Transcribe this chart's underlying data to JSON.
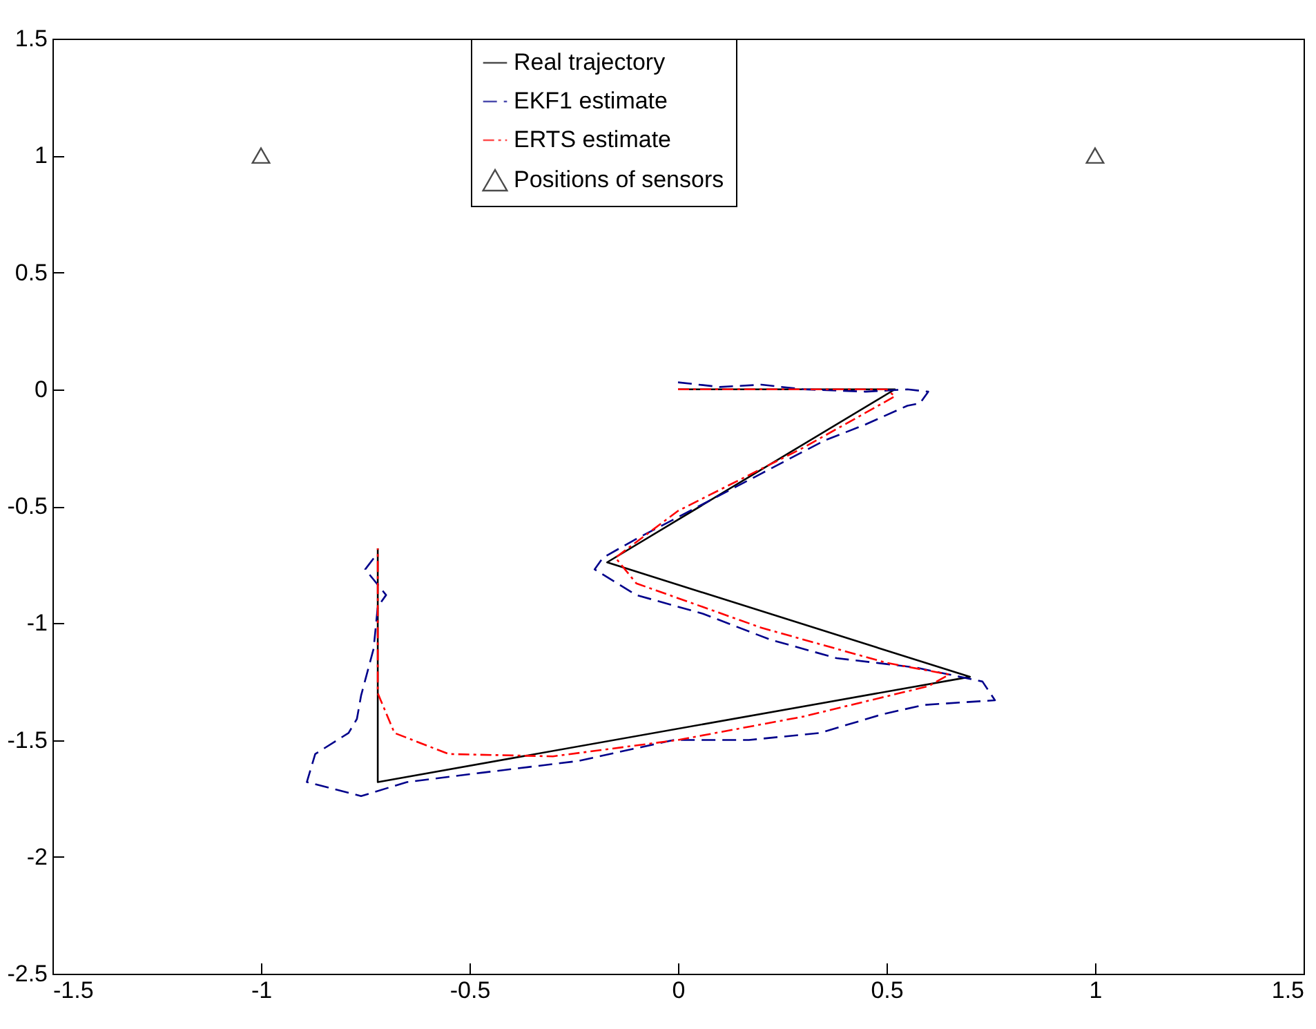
{
  "chart_data": {
    "type": "line",
    "xlim": [
      -1.5,
      1.5
    ],
    "xticks": [
      -1.5,
      -1,
      -0.5,
      0,
      0.5,
      1,
      1.5
    ],
    "ylim": [
      -2.5,
      1.5
    ],
    "yticks": [
      -2.5,
      -2,
      -1.5,
      -1,
      -0.5,
      0,
      0.5,
      1,
      1.5
    ],
    "grid": false,
    "legend": "top",
    "series": [
      {
        "name": "Real trajectory",
        "type": "line",
        "color": "#000000",
        "line_style": "solid",
        "x": [
          0,
          0.52,
          -0.17,
          0.7,
          -0.72,
          -0.72
        ],
        "values": [
          0,
          0,
          -0.74,
          -1.23,
          -1.68,
          -0.68
        ]
      },
      {
        "name": "EKF1 estimate",
        "type": "line",
        "color": "#00008b",
        "line_style": "dashed",
        "x": [
          0,
          0.1,
          0.2,
          0.3,
          0.45,
          0.55,
          0.6,
          0.58,
          0.55,
          0.45,
          0.35,
          0.2,
          0.05,
          -0.1,
          -0.18,
          -0.2,
          -0.1,
          0.06,
          0.22,
          0.38,
          0.57,
          0.73,
          0.76,
          0.59,
          0.49,
          0.34,
          0.17,
          -0.01,
          -0.24,
          -0.47,
          -0.65,
          -0.76,
          -0.89,
          -0.87,
          -0.79,
          -0.77,
          -0.76,
          -0.73,
          -0.72,
          -0.7,
          -0.75,
          -0.72
        ],
        "values": [
          0.03,
          0.01,
          0.02,
          0,
          -0.01,
          0,
          -0.01,
          -0.06,
          -0.07,
          -0.15,
          -0.22,
          -0.36,
          -0.5,
          -0.64,
          -0.72,
          -0.77,
          -0.88,
          -0.96,
          -1.07,
          -1.15,
          -1.19,
          -1.25,
          -1.33,
          -1.35,
          -1.39,
          -1.47,
          -1.5,
          -1.5,
          -1.59,
          -1.64,
          -1.68,
          -1.74,
          -1.68,
          -1.56,
          -1.47,
          -1.41,
          -1.31,
          -1.11,
          -0.93,
          -0.88,
          -0.77,
          -0.7
        ]
      },
      {
        "name": "ERTS estimate",
        "type": "line",
        "color": "#ff0000",
        "line_style": "dashdot",
        "x": [
          0,
          0.5,
          0.52,
          0.3,
          0,
          -0.15,
          -0.1,
          0.2,
          0.5,
          0.65,
          0.6,
          0.3,
          0,
          -0.3,
          -0.55,
          -0.68,
          -0.72,
          -0.72,
          -0.72
        ],
        "values": [
          0,
          0,
          -0.03,
          -0.25,
          -0.52,
          -0.72,
          -0.83,
          -1.02,
          -1.17,
          -1.22,
          -1.27,
          -1.4,
          -1.5,
          -1.57,
          -1.56,
          -1.47,
          -1.3,
          -1,
          -0.68
        ]
      },
      {
        "name": "Positions of sensors",
        "type": "scatter",
        "marker": "triangle",
        "color": "#000000",
        "x": [
          -1,
          1
        ],
        "values": [
          1,
          1
        ]
      }
    ]
  }
}
